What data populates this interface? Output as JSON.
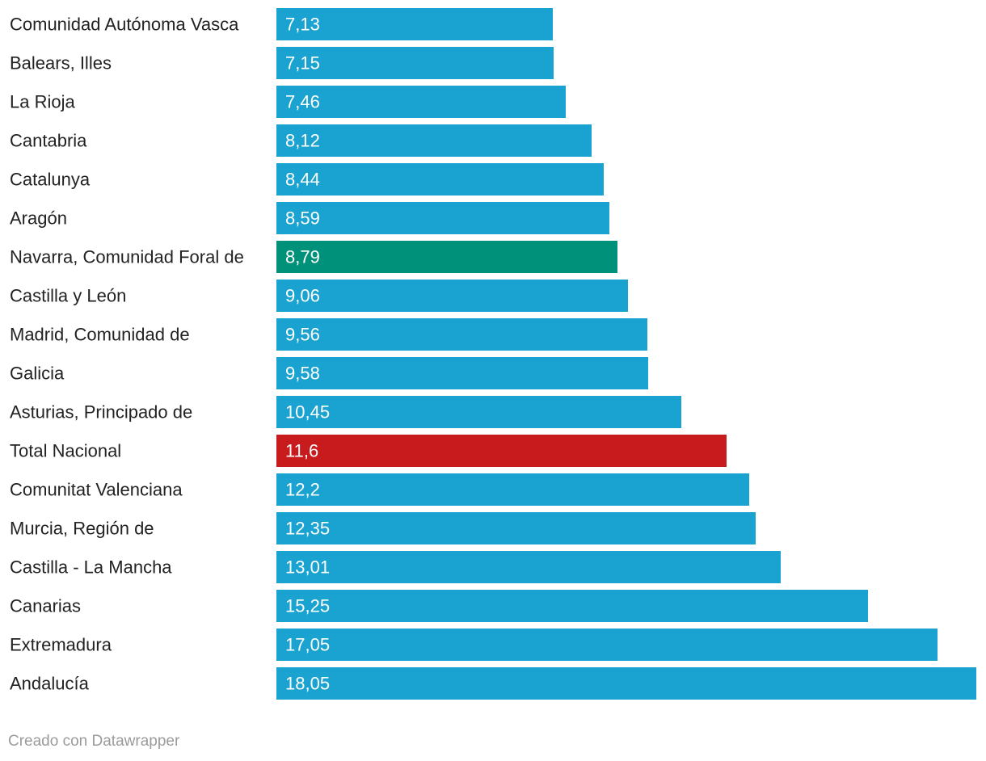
{
  "chart_data": {
    "type": "bar",
    "orientation": "horizontal",
    "title": "",
    "xlabel": "",
    "ylabel": "",
    "xlim": [
      0,
      18.05
    ],
    "grid": false,
    "categories": [
      "Comunidad Autónoma Vasca",
      "Balears, Illes",
      "La Rioja",
      "Cantabria",
      "Catalunya",
      "Aragón",
      "Navarra, Comunidad Foral de",
      "Castilla y León",
      "Madrid, Comunidad de",
      "Galicia",
      "Asturias, Principado de",
      "Total Nacional",
      "Comunitat Valenciana",
      "Murcia, Región de",
      "Castilla - La Mancha",
      "Canarias",
      "Extremadura",
      "Andalucía"
    ],
    "values": [
      7.13,
      7.15,
      7.46,
      8.12,
      8.44,
      8.59,
      8.79,
      9.06,
      9.56,
      9.58,
      10.45,
      11.6,
      12.2,
      12.35,
      13.01,
      15.25,
      17.05,
      18.05
    ],
    "value_labels": [
      "7,13",
      "7,15",
      "7,46",
      "8,12",
      "8,44",
      "8,59",
      "8,79",
      "9,06",
      "9,56",
      "9,58",
      "10,45",
      "11,6",
      "12,2",
      "12,35",
      "13,01",
      "15,25",
      "17,05",
      "18,05"
    ],
    "colors": {
      "default": "#1aa3d0",
      "highlight": {
        "Navarra, Comunidad Foral de": "#00917a",
        "Total Nacional": "#c71b1e"
      }
    }
  },
  "footer": {
    "credit": "Creado con Datawrapper"
  }
}
